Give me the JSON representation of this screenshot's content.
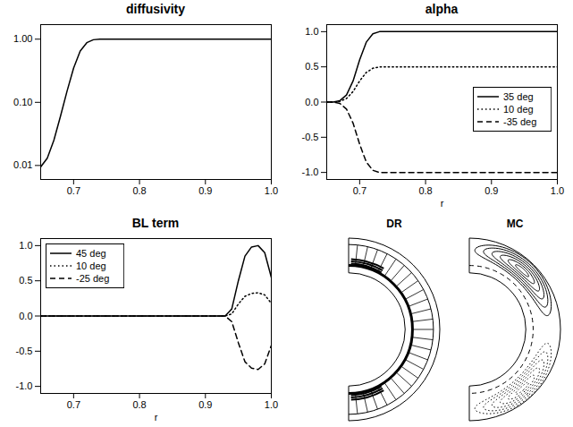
{
  "chart_data": [
    {
      "type": "line",
      "title": "diffusivity",
      "log": "y",
      "x": [
        0.65,
        0.66,
        0.67,
        0.68,
        0.69,
        0.7,
        0.71,
        0.72,
        0.73,
        0.74,
        1.0
      ],
      "values": [
        0.0095,
        0.013,
        0.025,
        0.06,
        0.15,
        0.35,
        0.65,
        0.88,
        0.98,
        1.0,
        1.0
      ],
      "xlim": [
        0.65,
        1.0
      ],
      "xticks": [
        0.7,
        0.8,
        0.9,
        {
          "value": 1.0,
          "label": "1.0"
        }
      ],
      "ylim": [
        0.006,
        1.7
      ],
      "yticks": [
        0.01,
        {
          "value": 0.1,
          "label": "0.10"
        },
        {
          "value": 1,
          "label": "1.00"
        }
      ]
    },
    {
      "type": "line",
      "title": "alpha",
      "x_label": "r",
      "legend": "right",
      "x": [
        0.65,
        0.66,
        0.67,
        0.68,
        0.69,
        0.7,
        0.71,
        0.72,
        0.73,
        0.74,
        1.0
      ],
      "series": [
        {
          "name": "35 deg",
          "line_style": "solid",
          "values": [
            0,
            0,
            0.02,
            0.1,
            0.3,
            0.6,
            0.85,
            0.97,
            1.0,
            1.0,
            1.0
          ]
        },
        {
          "name": "10 deg",
          "line_style": "dotted",
          "values": [
            0,
            0,
            0.01,
            0.05,
            0.15,
            0.3,
            0.42,
            0.48,
            0.5,
            0.5,
            0.5
          ]
        },
        {
          "name": "-35 deg",
          "line_style": "dashed",
          "values": [
            0,
            0,
            -0.02,
            -0.1,
            -0.3,
            -0.6,
            -0.85,
            -0.97,
            -1.0,
            -1.0,
            -1.0
          ]
        }
      ],
      "xlim": [
        0.65,
        1.0
      ],
      "xticks": [
        0.7,
        0.8,
        0.9,
        {
          "value": 1.0,
          "label": "1.0"
        }
      ],
      "ylim": [
        -1.1,
        1.1
      ],
      "yticks": [
        {
          "value": -1,
          "label": "-1.0"
        },
        -0.5,
        {
          "value": 0,
          "label": "0.0"
        },
        0.5,
        {
          "value": 1,
          "label": "1.0"
        }
      ]
    },
    {
      "type": "line",
      "title": "BL term",
      "x_label": "r",
      "legend": "top-left",
      "x": [
        0.65,
        0.93,
        0.94,
        0.95,
        0.96,
        0.97,
        0.98,
        0.99,
        1.0
      ],
      "series": [
        {
          "name": "45 deg",
          "line_style": "solid",
          "values": [
            0,
            0,
            0.1,
            0.5,
            0.85,
            0.98,
            1.0,
            0.9,
            0.55
          ]
        },
        {
          "name": "10 deg",
          "line_style": "dotted",
          "values": [
            0,
            0,
            0.03,
            0.17,
            0.28,
            0.32,
            0.33,
            0.3,
            0.18
          ]
        },
        {
          "name": "-25 deg",
          "line_style": "dashed",
          "values": [
            0,
            0,
            -0.08,
            -0.38,
            -0.65,
            -0.74,
            -0.76,
            -0.68,
            -0.42
          ]
        }
      ],
      "xlim": [
        0.65,
        1.0
      ],
      "xticks": [
        0.7,
        0.8,
        0.9,
        {
          "value": 1.0,
          "label": "1.0"
        }
      ],
      "ylim": [
        -1.1,
        1.1
      ],
      "yticks": [
        {
          "value": -1,
          "label": "-1.0"
        },
        -0.5,
        {
          "value": 0,
          "label": "0.0"
        },
        0.5,
        {
          "value": 1,
          "label": "1.0"
        }
      ]
    },
    {
      "type": "diagram",
      "panels": [
        {
          "title": "DR"
        },
        {
          "title": "MC"
        }
      ]
    }
  ]
}
